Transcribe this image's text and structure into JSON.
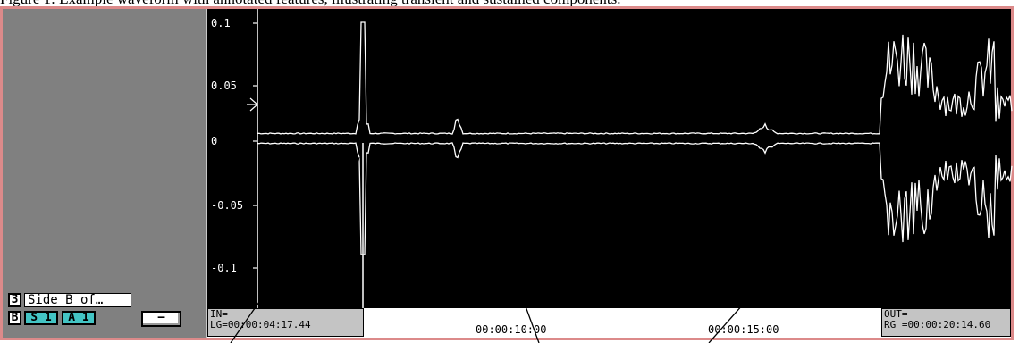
{
  "caption_fragment": "Figure 1: Example waveform with annotated features, illustrating transient and sustained components.",
  "left_panel": {
    "track_number": "3",
    "track_name": "Side B of…",
    "side_badge": "B",
    "source_s_label": "S 1",
    "source_a_label": "A 1",
    "minus_button_label": "–"
  },
  "waveform": {
    "y_ticks": [
      "0.1",
      "0.05",
      "0",
      "-0.05",
      "-0.1"
    ],
    "in_label": "IN=",
    "in_value": "LG=00:00:04:17.44",
    "out_label": "OUT=",
    "out_value": "RG =00:00:20:14.60",
    "timeline_labels": [
      "00:00:10:00",
      "00:00:15:00"
    ],
    "colors": {
      "background": "#000000",
      "trace": "#ffffff",
      "axis": "#ffffff",
      "window_border": "#dc8a8a",
      "badge_accent": "#43c4c4"
    }
  }
}
